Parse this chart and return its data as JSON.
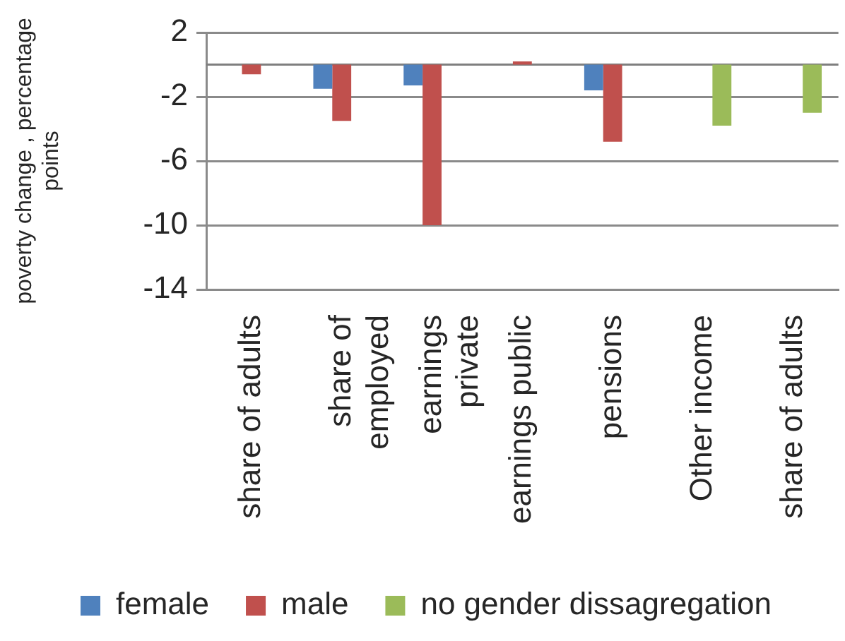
{
  "chart_data": {
    "type": "bar",
    "ylabel": "poverty change , percentage points",
    "categories": [
      "share of adults",
      "share of employed",
      "earnings private",
      "earnings public",
      "pensions",
      "Other income",
      "share of adults"
    ],
    "series": [
      {
        "name": "female",
        "color": "#4f81bd",
        "values": [
          null,
          -1.5,
          -1.3,
          null,
          -1.6,
          null,
          null
        ]
      },
      {
        "name": "male",
        "color": "#c0504d",
        "values": [
          -0.6,
          -3.5,
          -10,
          0.2,
          -4.8,
          null,
          null
        ]
      },
      {
        "name": "no gender dissagregation",
        "color": "#9bbb59",
        "values": [
          null,
          null,
          null,
          null,
          null,
          -3.8,
          -3.0
        ]
      }
    ],
    "ylim": [
      -14,
      2
    ],
    "yticks": [
      2,
      -2,
      -6,
      -10,
      -14
    ],
    "grid": "y",
    "legend": "bottom",
    "ref_lines": [
      {
        "axis": "y",
        "value": 0
      }
    ]
  }
}
